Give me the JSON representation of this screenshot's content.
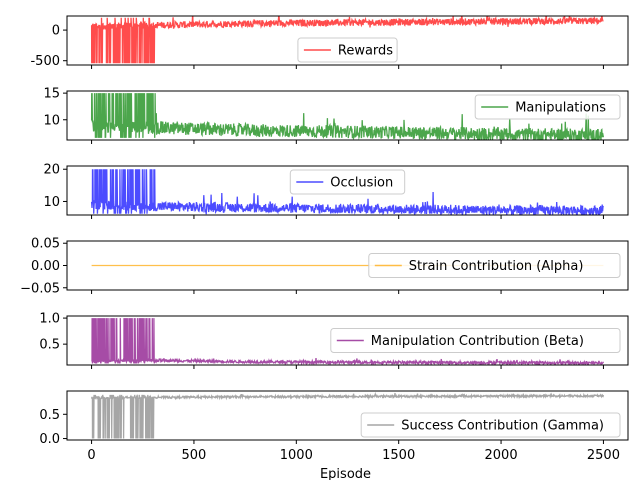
{
  "chart_data": {
    "type": "line",
    "xlabel": "Episode",
    "xlim": [
      -120,
      2620
    ],
    "xticks": [
      0,
      500,
      1000,
      1500,
      2000,
      2500
    ],
    "xtick_labels": [
      "0",
      "500",
      "1000",
      "1500",
      "2000",
      "2500"
    ],
    "episodes": 2500,
    "panels": [
      {
        "series_name": "Rewards",
        "color": "#ff0000",
        "legend_loc": "lower center",
        "ylim": [
          -570,
          230
        ],
        "yticks": [
          -500,
          0
        ],
        "ytick_labels": [
          "-500",
          "0"
        ],
        "baseline": [
          [
            0,
            60
          ],
          [
            300,
            80
          ],
          [
            800,
            110
          ],
          [
            1500,
            130
          ],
          [
            2000,
            140
          ],
          [
            2500,
            150
          ]
        ],
        "noise_amp": 55,
        "spike_region": [
          0,
          310
        ],
        "spike_value": -540,
        "spike_high": 200
      },
      {
        "series_name": "Manipulations",
        "color": "#008000",
        "legend_loc": "upper right",
        "ylim": [
          6.2,
          15.4
        ],
        "yticks": [
          10,
          15
        ],
        "ytick_labels": [
          "10",
          "15"
        ],
        "baseline": [
          [
            0,
            9
          ],
          [
            300,
            8.5
          ],
          [
            800,
            8
          ],
          [
            1500,
            7.6
          ],
          [
            2000,
            7.3
          ],
          [
            2500,
            7.1
          ]
        ],
        "noise_amp": 1.2,
        "spike_region": [
          0,
          310
        ],
        "spike_value": 15,
        "spike_high": 6.6
      },
      {
        "series_name": "Occlusion",
        "color": "#0000ff",
        "legend_loc": "upper center",
        "ylim": [
          5.8,
          21
        ],
        "yticks": [
          10,
          20
        ],
        "ytick_labels": [
          "10",
          "20"
        ],
        "baseline": [
          [
            0,
            9
          ],
          [
            300,
            8.5
          ],
          [
            800,
            8
          ],
          [
            1500,
            7.6
          ],
          [
            2000,
            7.3
          ],
          [
            2500,
            7.2
          ]
        ],
        "noise_amp": 1.5,
        "spike_region": [
          0,
          310
        ],
        "spike_value": 20,
        "spike_high": 6.2
      },
      {
        "series_name": "Strain Contribution (Alpha)",
        "color": "#ffa500",
        "legend_loc": "center right",
        "ylim": [
          -0.055,
          0.055
        ],
        "yticks": [
          -0.05,
          0.0,
          0.05
        ],
        "ytick_labels": [
          "−0.05",
          "0.00",
          "0.05"
        ],
        "baseline": [
          [
            0,
            0
          ],
          [
            2500,
            0
          ]
        ],
        "noise_amp": 0,
        "spike_region": [
          0,
          0
        ],
        "spike_value": 0,
        "spike_high": 0
      },
      {
        "series_name": "Manipulation Contribution (Beta)",
        "color": "#800080",
        "legend_loc": "center right",
        "ylim": [
          0.1,
          1.04
        ],
        "yticks": [
          0.5,
          1.0
        ],
        "ytick_labels": [
          "0.5",
          "1.0"
        ],
        "baseline": [
          [
            0,
            0.17
          ],
          [
            300,
            0.19
          ],
          [
            800,
            0.16
          ],
          [
            1500,
            0.15
          ],
          [
            2500,
            0.14
          ]
        ],
        "noise_amp": 0.025,
        "spike_region": [
          0,
          310
        ],
        "spike_value": 1.0,
        "spike_high": 0.13
      },
      {
        "series_name": "Success Contribution (Gamma)",
        "color": "#808080",
        "legend_loc": "lower right",
        "ylim": [
          -0.03,
          0.98
        ],
        "yticks": [
          0.0,
          0.5
        ],
        "ytick_labels": [
          "0.0",
          "0.5"
        ],
        "baseline": [
          [
            0,
            0.84
          ],
          [
            300,
            0.85
          ],
          [
            800,
            0.86
          ],
          [
            1500,
            0.87
          ],
          [
            2500,
            0.88
          ]
        ],
        "noise_amp": 0.02,
        "spike_region": [
          0,
          310
        ],
        "spike_value": 0.0,
        "spike_high": 0.9
      }
    ]
  }
}
